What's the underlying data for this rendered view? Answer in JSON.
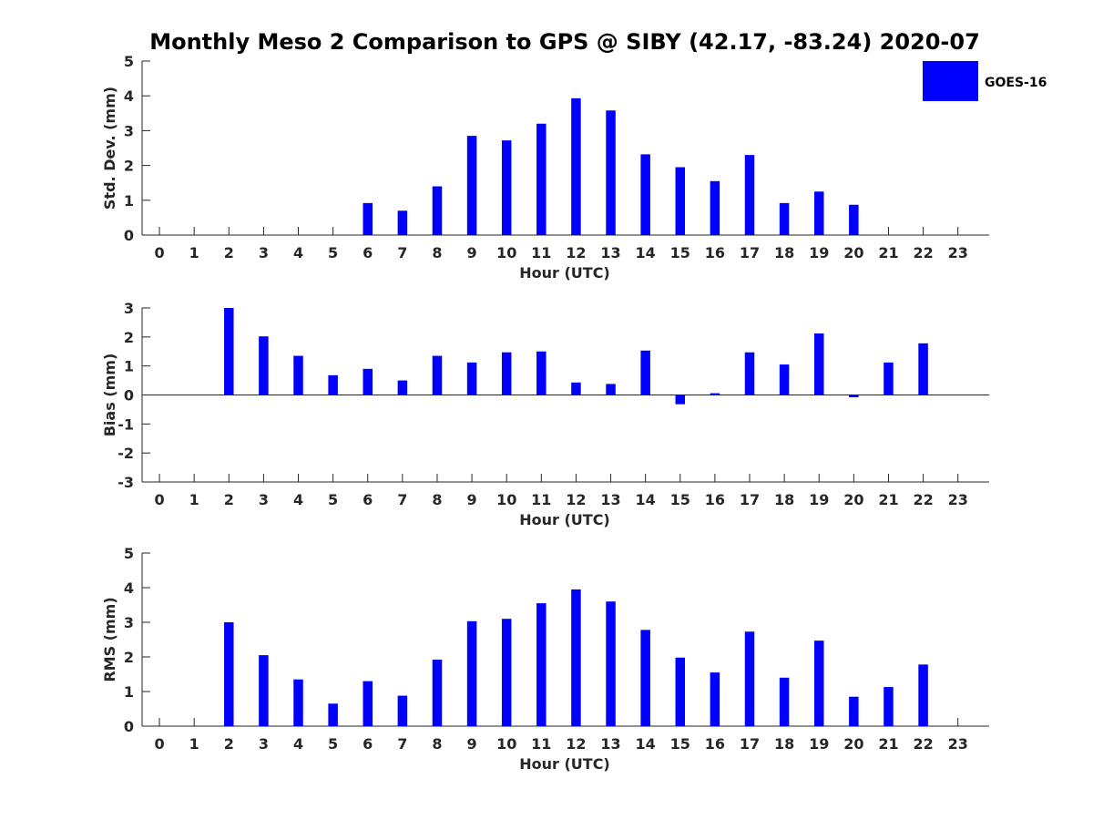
{
  "title": "Monthly Meso 2 Comparison to GPS @ SIBY (42.17, -83.24) 2020-07",
  "legend": {
    "label": "GOES-16",
    "color": "#0000ff"
  },
  "chart_data": [
    {
      "type": "bar",
      "xlabel": "Hour (UTC)",
      "ylabel": "Std. Dev. (mm)",
      "ylim": [
        0,
        5
      ],
      "yticks": [
        0,
        1,
        2,
        3,
        4,
        5
      ],
      "categories": [
        0,
        1,
        2,
        3,
        4,
        5,
        6,
        7,
        8,
        9,
        10,
        11,
        12,
        13,
        14,
        15,
        16,
        17,
        18,
        19,
        20,
        21,
        22,
        23
      ],
      "series": [
        {
          "name": "GOES-16",
          "values": [
            null,
            null,
            null,
            null,
            null,
            null,
            0.92,
            0.7,
            1.4,
            2.85,
            2.72,
            3.2,
            3.93,
            3.58,
            2.32,
            1.95,
            1.55,
            2.3,
            0.92,
            1.25,
            0.87,
            null,
            null,
            null
          ]
        }
      ],
      "legend": "top-right",
      "grid": false
    },
    {
      "type": "bar",
      "xlabel": "Hour (UTC)",
      "ylabel": "Bias (mm)",
      "ylim": [
        -3,
        3
      ],
      "yticks": [
        -3,
        -2,
        -1,
        0,
        1,
        2,
        3
      ],
      "categories": [
        0,
        1,
        2,
        3,
        4,
        5,
        6,
        7,
        8,
        9,
        10,
        11,
        12,
        13,
        14,
        15,
        16,
        17,
        18,
        19,
        20,
        21,
        22,
        23
      ],
      "series": [
        {
          "name": "GOES-16",
          "values": [
            null,
            null,
            3.0,
            2.02,
            1.35,
            0.68,
            0.9,
            0.5,
            1.35,
            1.12,
            1.47,
            1.5,
            0.43,
            0.38,
            1.53,
            -0.32,
            0.06,
            1.47,
            1.05,
            2.12,
            -0.08,
            1.12,
            1.78,
            null
          ]
        }
      ],
      "grid": false
    },
    {
      "type": "bar",
      "xlabel": "Hour (UTC)",
      "ylabel": "RMS (mm)",
      "ylim": [
        0,
        5
      ],
      "yticks": [
        0,
        1,
        2,
        3,
        4,
        5
      ],
      "categories": [
        0,
        1,
        2,
        3,
        4,
        5,
        6,
        7,
        8,
        9,
        10,
        11,
        12,
        13,
        14,
        15,
        16,
        17,
        18,
        19,
        20,
        21,
        22,
        23
      ],
      "series": [
        {
          "name": "GOES-16",
          "values": [
            null,
            null,
            3.0,
            2.05,
            1.35,
            0.65,
            1.3,
            0.88,
            1.92,
            3.03,
            3.1,
            3.55,
            3.95,
            3.6,
            2.78,
            1.98,
            1.55,
            2.73,
            1.4,
            2.47,
            0.85,
            1.13,
            1.78,
            null
          ]
        }
      ],
      "grid": false
    }
  ]
}
